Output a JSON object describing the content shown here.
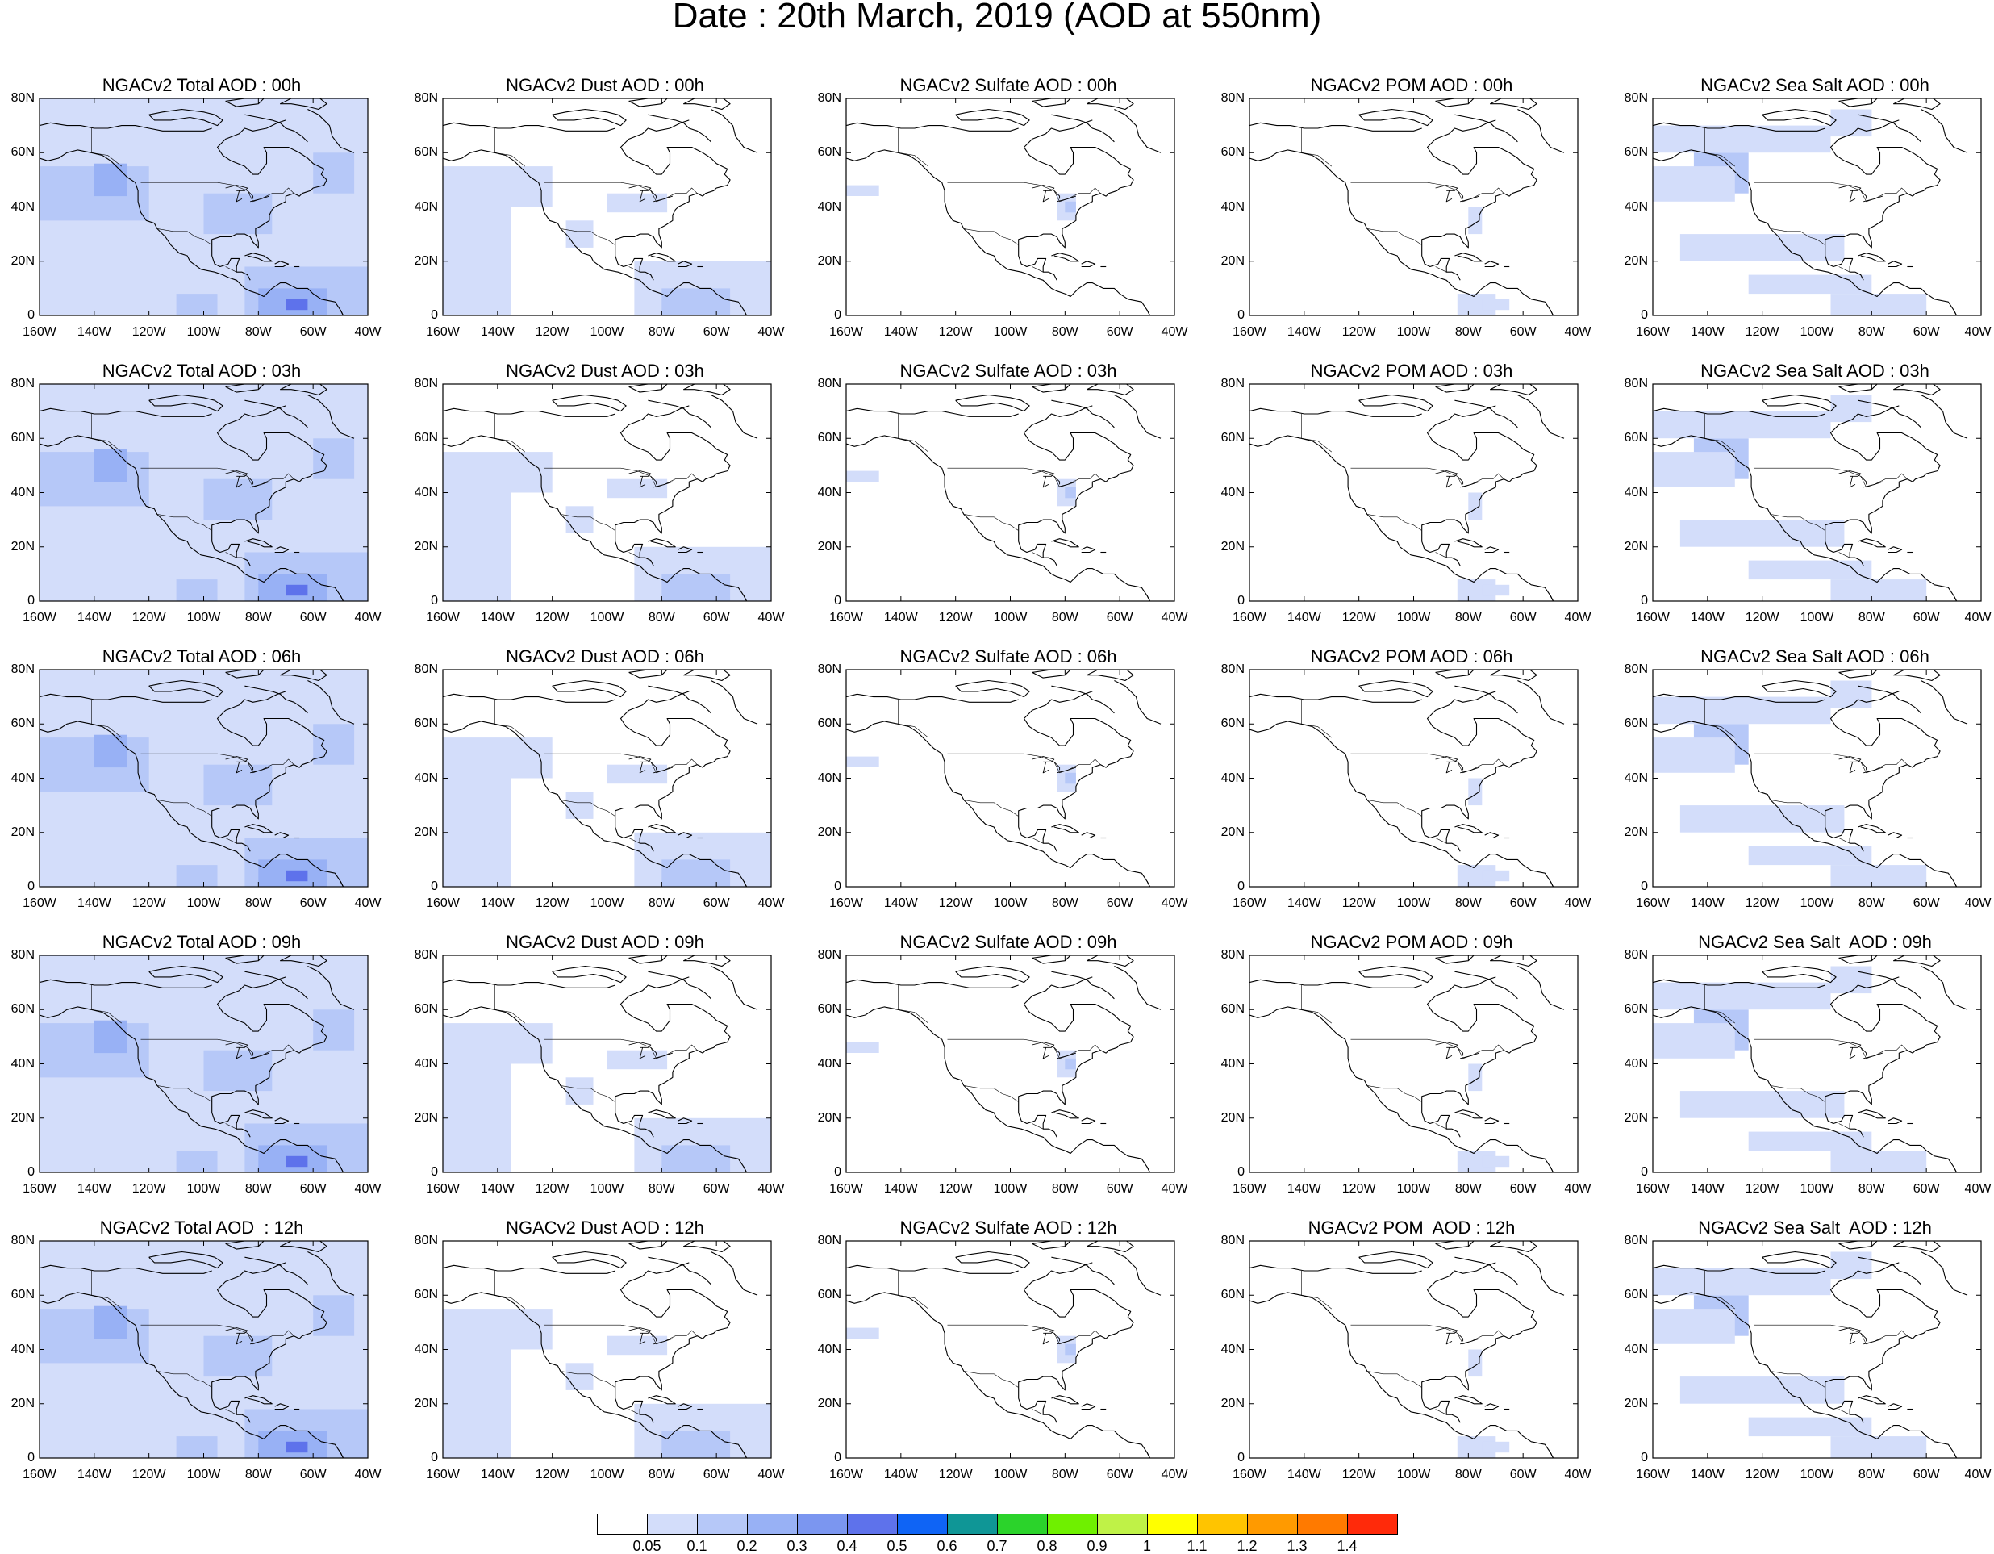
{
  "title": "Date : 20th March, 2019 (AOD at 550nm)",
  "lat_ticks": [
    "80N",
    "60N",
    "40N",
    "20N",
    "0"
  ],
  "lon_ticks": [
    "160W",
    "140W",
    "120W",
    "100W",
    "80W",
    "60W",
    "40W"
  ],
  "columns": [
    {
      "species": "total",
      "shade": "#d2dcfb"
    },
    {
      "species": "dust",
      "shade": "#d6e0fb"
    },
    {
      "species": "sulfate",
      "shade": "#dae3fb"
    },
    {
      "species": "pom",
      "shade": "#dae3fb"
    },
    {
      "species": "seasalt",
      "shade": "#d2dcfb"
    }
  ],
  "panels": [
    [
      "NGACv2 Total AOD : 00h",
      "NGACv2 Dust AOD : 00h",
      "NGACv2 Sulfate AOD : 00h",
      "NGACv2 POM AOD : 00h",
      "NGACv2 Sea Salt AOD : 00h"
    ],
    [
      "NGACv2 Total AOD : 03h",
      "NGACv2 Dust AOD : 03h",
      "NGACv2 Sulfate AOD : 03h",
      "NGACv2 POM AOD : 03h",
      "NGACv2 Sea Salt AOD : 03h"
    ],
    [
      "NGACv2 Total AOD : 06h",
      "NGACv2 Dust AOD : 06h",
      "NGACv2 Sulfate AOD : 06h",
      "NGACv2 POM AOD : 06h",
      "NGACv2 Sea Salt AOD : 06h"
    ],
    [
      "NGACv2 Total AOD : 09h",
      "NGACv2 Dust AOD : 09h",
      "NGACv2 Sulfate AOD : 09h",
      "NGACv2 POM AOD : 09h",
      "NGACv2 Sea Salt  AOD : 09h"
    ],
    [
      "NGACv2 Total AOD  : 12h",
      "NGACv2 Dust AOD : 12h",
      "NGACv2 Sulfate AOD : 12h",
      "NGACv2 POM  AOD : 12h",
      "NGACv2 Sea Salt  AOD : 12h"
    ]
  ],
  "colorbar": {
    "labels": [
      "0.05",
      "0.1",
      "0.2",
      "0.3",
      "0.4",
      "0.5",
      "0.6",
      "0.7",
      "0.8",
      "0.9",
      "1",
      "1.1",
      "1.2",
      "1.3",
      "1.4"
    ],
    "colors": [
      "#ffffff",
      "#d3ddfa",
      "#b6c8f8",
      "#98b1f5",
      "#7b96f0",
      "#5e72eb",
      "#0f64f5",
      "#0f9696",
      "#2bd32b",
      "#6ff000",
      "#bff247",
      "#ffff00",
      "#ffc400",
      "#ff9a00",
      "#ff7a00",
      "#ff2a0a"
    ]
  }
}
